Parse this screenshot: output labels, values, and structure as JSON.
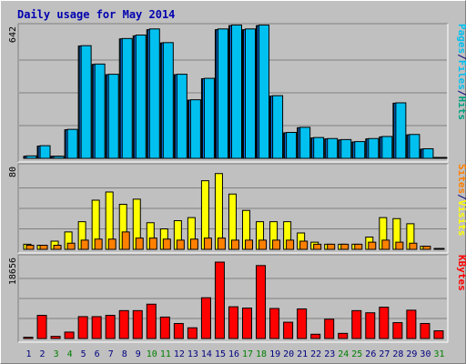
{
  "chart_data": {
    "type": "bar",
    "title": "Daily usage for May 2014",
    "categories": [
      "1",
      "2",
      "3",
      "4",
      "5",
      "6",
      "7",
      "8",
      "9",
      "10",
      "11",
      "12",
      "13",
      "14",
      "15",
      "16",
      "17",
      "18",
      "19",
      "20",
      "21",
      "22",
      "23",
      "24",
      "25",
      "26",
      "27",
      "28",
      "29",
      "30",
      "31"
    ],
    "weekend_days": [
      "3",
      "4",
      "10",
      "11",
      "17",
      "18",
      "24",
      "25",
      "31"
    ],
    "panels": [
      {
        "name": "pages-files-hits",
        "ymax_label": "642",
        "ymax": 642,
        "legend": [
          "Pages",
          "/",
          "Files",
          "/",
          "Hits"
        ],
        "legend_colors": [
          "#00c0f0",
          "#000080",
          "#00c0f0",
          "#000080",
          "#00a080"
        ],
        "series": [
          {
            "name": "Hits",
            "color": "#00a080",
            "values": [
              10,
              60,
              10,
              140,
              550,
              460,
              410,
              585,
              600,
              630,
              565,
              410,
              285,
              390,
              630,
              650,
              630,
              650,
              305,
              125,
              150,
              100,
              95,
              90,
              80,
              95,
              105,
              270,
              115,
              45,
              0
            ]
          },
          {
            "name": "Files",
            "color": "#0080ff",
            "values": [
              10,
              60,
              10,
              140,
              550,
              460,
              410,
              585,
              600,
              630,
              565,
              410,
              285,
              390,
              630,
              650,
              630,
              650,
              305,
              125,
              150,
              100,
              95,
              90,
              80,
              95,
              105,
              270,
              115,
              45,
              0
            ]
          },
          {
            "name": "Pages",
            "color": "#00c0f0",
            "values": [
              12,
              62,
              10,
              142,
              552,
              462,
              412,
              587,
              604,
              634,
              567,
              412,
              287,
              392,
              634,
              653,
              634,
              653,
              307,
              127,
              152,
              102,
              97,
              92,
              82,
              97,
              107,
              272,
              117,
              47,
              0
            ]
          }
        ]
      },
      {
        "name": "sites-visits",
        "ymax_label": "80",
        "ymax": 80,
        "legend": [
          "Sites",
          "/",
          "Visits"
        ],
        "legend_colors": [
          "#ff8000",
          "#000080",
          "#ffff00"
        ],
        "series": [
          {
            "name": "Visits",
            "color": "#ffff00",
            "values": [
              5,
              4,
              8,
              17,
              27,
              48,
              56,
              44,
              49,
              26,
              20,
              28,
              31,
              67,
              74,
              54,
              38,
              27,
              27,
              27,
              16,
              7,
              5,
              5,
              5,
              12,
              31,
              30,
              25,
              3,
              0
            ]
          },
          {
            "name": "Sites",
            "color": "#ff8000",
            "values": [
              4,
              4,
              4,
              6,
              9,
              10,
              10,
              17,
              11,
              11,
              10,
              9,
              10,
              11,
              11,
              9,
              9,
              9,
              9,
              9,
              8,
              5,
              5,
              5,
              5,
              7,
              9,
              7,
              6,
              3,
              0
            ]
          }
        ]
      },
      {
        "name": "kbytes",
        "ymax_label": "18656",
        "ymax": 18656,
        "legend": [
          "KBytes"
        ],
        "legend_colors": [
          "#ff0000"
        ],
        "series": [
          {
            "name": "KBytes",
            "color": "#ff0000",
            "values": [
              300,
              5400,
              500,
              1500,
              5100,
              5100,
              5400,
              6500,
              6500,
              8000,
              5000,
              3500,
              2500,
              9500,
              17800,
              7400,
              7100,
              17000,
              7000,
              3800,
              6900,
              1000,
              4500,
              1200,
              6500,
              6000,
              7300,
              3700,
              6600,
              3500,
              1800
            ]
          }
        ]
      }
    ]
  },
  "colors": {
    "background": "#c0c0c0",
    "plot_bg": "#c0c0c0",
    "title": "#0000b0",
    "weekday_label": "#000080",
    "weekend_label": "#008000"
  }
}
